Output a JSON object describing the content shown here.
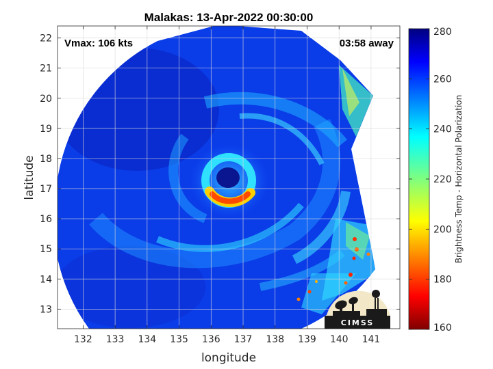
{
  "map": {
    "title": "Malakas: 13-Apr-2022 00:30:00",
    "vmax_text": "Vmax: 106 kts",
    "time_away_text": "03:58 away",
    "xlabel": "longitude",
    "ylabel": "latitude",
    "x_ticks": [
      "132",
      "133",
      "134",
      "135",
      "136",
      "137",
      "138",
      "139",
      "140",
      "141"
    ],
    "y_ticks": [
      "22",
      "21",
      "20",
      "19",
      "18",
      "17",
      "16",
      "15",
      "14",
      "13"
    ],
    "xlim": [
      131.2,
      141.9
    ],
    "ylim": [
      12.35,
      22.4
    ],
    "storm_center": {
      "lon": 136.1,
      "lat": 17.3
    },
    "colorbar": {
      "label": "Brightness Temp - Horizontal Polarization",
      "ticks": [
        "280",
        "260",
        "240",
        "220",
        "200",
        "180",
        "160"
      ],
      "range": [
        160,
        280
      ],
      "colormap": "jet"
    },
    "logo": {
      "text": "CIMSS"
    }
  },
  "colors": {
    "background_field": "#0a3cf0",
    "eye": "#0a1a8c",
    "eyewall_warm": "#ff5a00",
    "logo_bg": "#f2e8c8",
    "logo_fg": "#1a1a1a"
  }
}
